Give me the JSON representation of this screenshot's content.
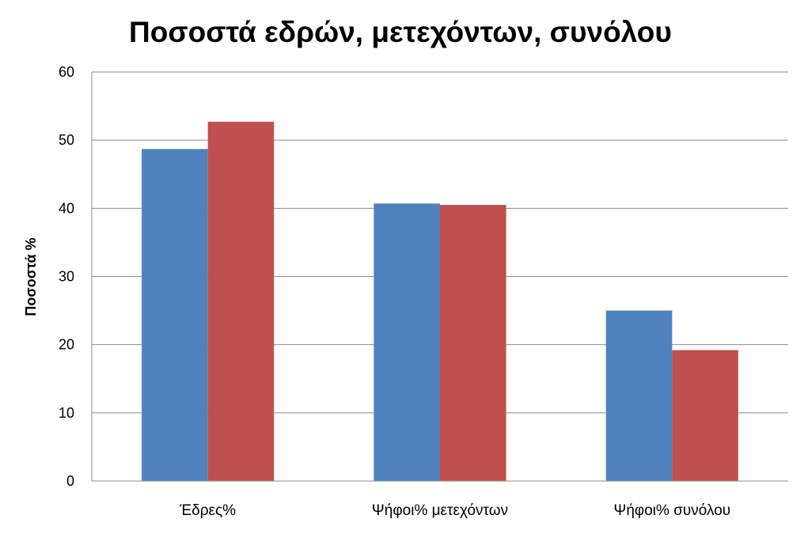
{
  "chart_data": {
    "type": "bar",
    "title": "Ποσοστά εδρών, μετεχόντων, συνόλου",
    "xlabel": "",
    "ylabel": "Ποσοστά %",
    "categories": [
      "Έδρες%",
      "Ψήφοι% μετεχόντων",
      "Ψήφοι% συνόλου"
    ],
    "series": [
      {
        "color": "#4f81bd",
        "values": [
          48.7,
          40.7,
          25.0
        ]
      },
      {
        "color": "#c0504d",
        "values": [
          52.7,
          40.5,
          19.2
        ]
      }
    ],
    "ylim": [
      0,
      60
    ],
    "yticks": [
      "0",
      "10",
      "20",
      "30",
      "40",
      "50",
      "60"
    ],
    "grid": true,
    "legend": "none"
  }
}
